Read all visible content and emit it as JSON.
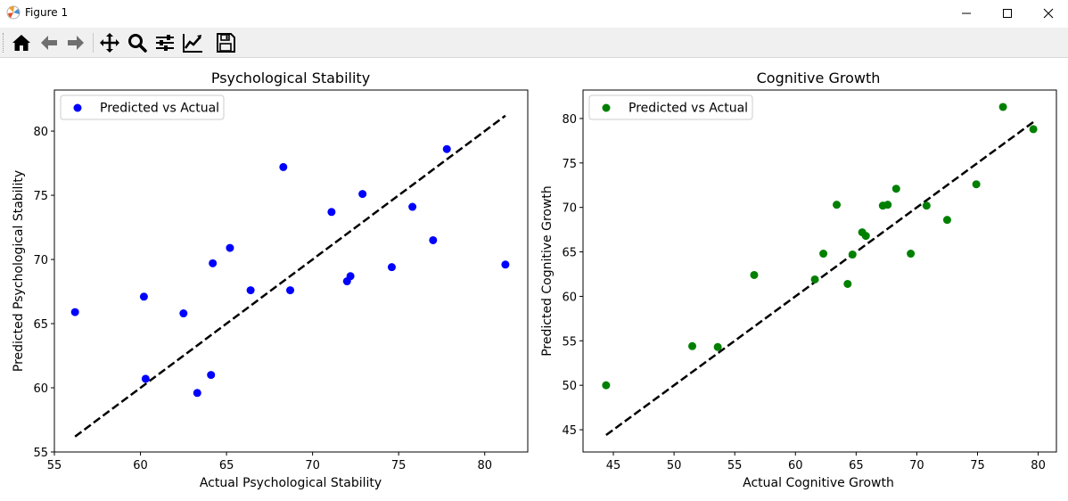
{
  "window": {
    "title": "Figure 1",
    "controls": [
      "minimize",
      "maximize",
      "close"
    ]
  },
  "toolbar": {
    "buttons": [
      {
        "name": "home-icon",
        "tooltip": "Reset original view"
      },
      {
        "name": "back-icon",
        "tooltip": "Back to previous view"
      },
      {
        "name": "forward-icon",
        "tooltip": "Forward to next view"
      },
      {
        "name": "pan-icon",
        "tooltip": "Pan axes"
      },
      {
        "name": "zoom-icon",
        "tooltip": "Zoom to rectangle"
      },
      {
        "name": "configure-subplots-icon",
        "tooltip": "Configure subplots"
      },
      {
        "name": "edit-axis-icon",
        "tooltip": "Edit axis, curve and image parameters"
      },
      {
        "name": "save-icon",
        "tooltip": "Save the figure"
      }
    ]
  },
  "chart_data": [
    {
      "type": "scatter",
      "title": "Psychological Stability",
      "xlabel": "Actual Psychological Stability",
      "ylabel": "Predicted Psychological Stability",
      "xlim": [
        55,
        82.5
      ],
      "ylim": [
        55,
        83.2
      ],
      "xticks": [
        55,
        60,
        65,
        70,
        75,
        80
      ],
      "yticks": [
        55,
        60,
        65,
        70,
        75,
        80
      ],
      "color": "#0000ff",
      "legend": {
        "label": "Predicted vs Actual",
        "loc": "upper left"
      },
      "ideal_line": {
        "from": 56.2,
        "to": 81.2,
        "style": "dashed",
        "color": "#000000"
      },
      "points": [
        {
          "x": 56.2,
          "y": 65.9
        },
        {
          "x": 60.2,
          "y": 67.1
        },
        {
          "x": 60.3,
          "y": 60.7
        },
        {
          "x": 62.5,
          "y": 65.8
        },
        {
          "x": 63.3,
          "y": 59.6
        },
        {
          "x": 64.1,
          "y": 61.0
        },
        {
          "x": 64.2,
          "y": 69.7
        },
        {
          "x": 65.2,
          "y": 70.9
        },
        {
          "x": 66.4,
          "y": 67.6
        },
        {
          "x": 68.3,
          "y": 77.2
        },
        {
          "x": 68.7,
          "y": 67.6
        },
        {
          "x": 71.1,
          "y": 73.7
        },
        {
          "x": 72.0,
          "y": 68.3
        },
        {
          "x": 72.2,
          "y": 68.7
        },
        {
          "x": 72.9,
          "y": 75.1
        },
        {
          "x": 74.6,
          "y": 69.4
        },
        {
          "x": 75.8,
          "y": 74.1
        },
        {
          "x": 77.0,
          "y": 71.5
        },
        {
          "x": 77.8,
          "y": 78.6
        },
        {
          "x": 81.2,
          "y": 69.6
        }
      ]
    },
    {
      "type": "scatter",
      "title": "Cognitive Growth",
      "xlabel": "Actual Cognitive Growth",
      "ylabel": "Predicted Cognitive Growth",
      "xlim": [
        42.5,
        81.5
      ],
      "ylim": [
        42.5,
        83.2
      ],
      "xticks": [
        45,
        50,
        55,
        60,
        65,
        70,
        75,
        80
      ],
      "yticks": [
        45,
        50,
        55,
        60,
        65,
        70,
        75,
        80
      ],
      "color": "#008000",
      "legend": {
        "label": "Predicted vs Actual",
        "loc": "upper left"
      },
      "ideal_line": {
        "from": 44.4,
        "to": 79.6,
        "style": "dashed",
        "color": "#000000"
      },
      "points": [
        {
          "x": 44.4,
          "y": 50.0
        },
        {
          "x": 51.5,
          "y": 54.4
        },
        {
          "x": 53.6,
          "y": 54.3
        },
        {
          "x": 56.6,
          "y": 62.4
        },
        {
          "x": 61.6,
          "y": 61.9
        },
        {
          "x": 62.3,
          "y": 64.8
        },
        {
          "x": 63.4,
          "y": 70.3
        },
        {
          "x": 64.3,
          "y": 61.4
        },
        {
          "x": 64.7,
          "y": 64.7
        },
        {
          "x": 65.5,
          "y": 67.2
        },
        {
          "x": 65.8,
          "y": 66.8
        },
        {
          "x": 67.2,
          "y": 70.2
        },
        {
          "x": 67.6,
          "y": 70.3
        },
        {
          "x": 68.3,
          "y": 72.1
        },
        {
          "x": 69.5,
          "y": 64.8
        },
        {
          "x": 70.8,
          "y": 70.2
        },
        {
          "x": 72.5,
          "y": 68.6
        },
        {
          "x": 74.9,
          "y": 72.6
        },
        {
          "x": 77.1,
          "y": 81.3
        },
        {
          "x": 79.6,
          "y": 78.8
        }
      ]
    }
  ]
}
